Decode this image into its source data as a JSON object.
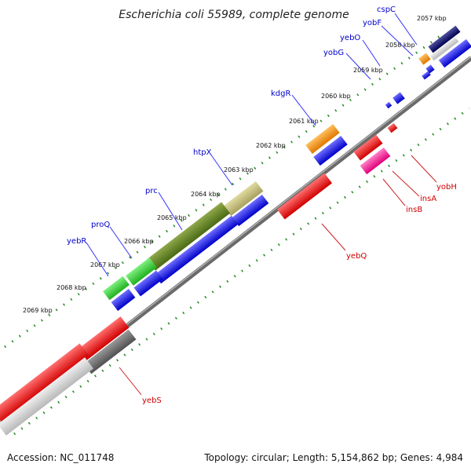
{
  "title": "Escherichia coli 55989, complete genome",
  "footer": {
    "accession": "Accession: NC_011748",
    "summary": "Topology: circular; Length: 5,154,862 bp; Genes: 4,984"
  },
  "scale_labels": [
    "2057 kbp",
    "2058 kbp",
    "2059 kbp",
    "2060 kbp",
    "2061 kbp",
    "2062 kbp",
    "2063 kbp",
    "2064 kbp",
    "2065 kbp",
    "2066 kbp",
    "2067 kbp",
    "2068 kbp",
    "2069 kbp"
  ],
  "genes_forward": [
    "cspC",
    "yobF",
    "yebO",
    "yobG",
    "kdgR",
    "htpX",
    "prc",
    "proQ",
    "yebR"
  ],
  "genes_reverse": [
    "yobH",
    "insA",
    "insB",
    "yebQ",
    "yebS"
  ],
  "colors": {
    "forward_cds": "#0000ee",
    "reverse_cds": "#ee0000",
    "backbone": "#808080",
    "tick": "#228b22"
  }
}
